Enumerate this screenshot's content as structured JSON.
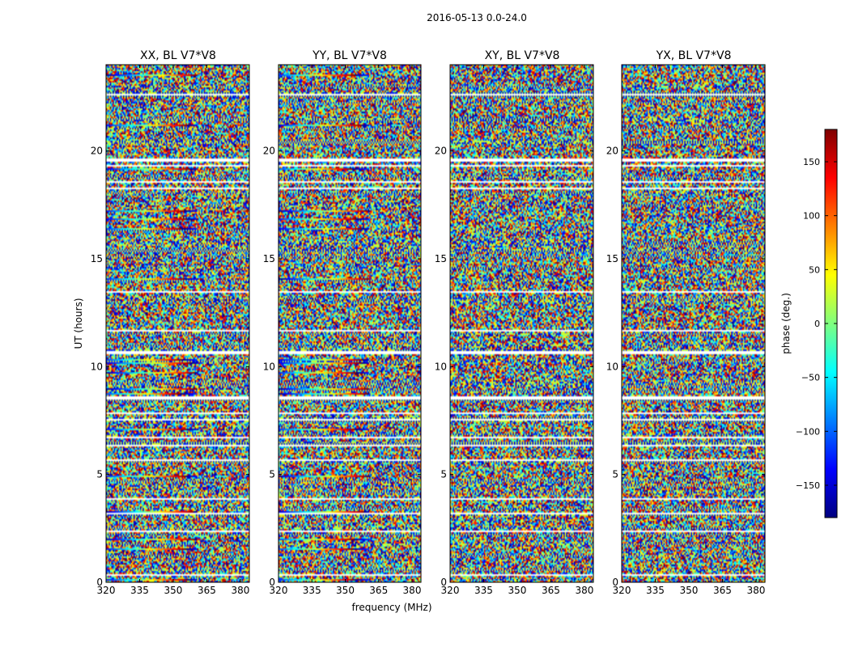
{
  "chart_data": {
    "type": "heatmap",
    "title": "2016-05-13 0.0-24.0",
    "xlabel": "frequency (MHz)",
    "ylabel": "UT (hours)",
    "xlim": [
      320,
      384
    ],
    "ylim": [
      0,
      24
    ],
    "x_ticks": [
      "320",
      "335",
      "350",
      "365",
      "380"
    ],
    "y_ticks": [
      "0",
      "5",
      "10",
      "15",
      "20"
    ],
    "panels": [
      {
        "title": "XX, BL V7*V8"
      },
      {
        "title": "YY, BL V7*V8"
      },
      {
        "title": "XY, BL V7*V8"
      },
      {
        "title": "YX, BL V7*V8"
      }
    ],
    "colorbar": {
      "label": "phase (deg.)",
      "range": [
        -180,
        180
      ],
      "ticks": [
        "150",
        "100",
        "50",
        "0",
        "−50",
        "−100",
        "−150"
      ],
      "tick_values": [
        150,
        100,
        50,
        0,
        -50,
        -100,
        -150
      ],
      "colormap": "jet"
    }
  },
  "colors": {
    "jet": [
      "#00007f",
      "#0000ff",
      "#007fff",
      "#00ffff",
      "#7fff7f",
      "#ffff00",
      "#ff7f00",
      "#ff0000",
      "#7f0000"
    ],
    "flag": "#ffffff",
    "frame": "#000000"
  }
}
